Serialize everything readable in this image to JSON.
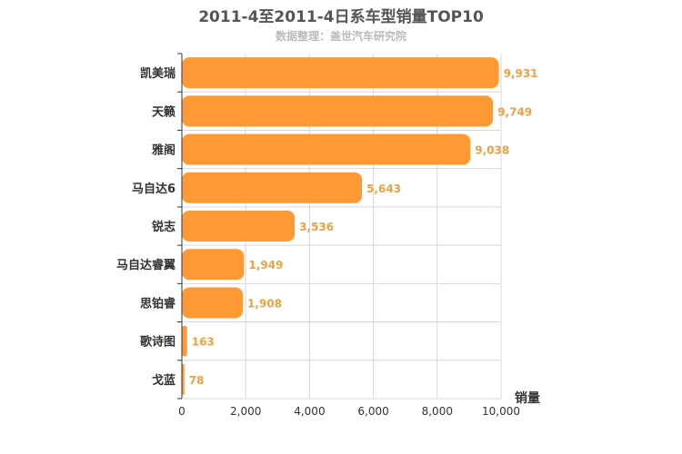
{
  "chart_data": {
    "type": "bar",
    "orientation": "horizontal",
    "title": "2011-4至2011-4日系车型销量TOP10",
    "subtitle": "数据整理：盖世汽车研究院",
    "categories": [
      "凯美瑞",
      "天籁",
      "雅阁",
      "马自达6",
      "锐志",
      "马自达睿翼",
      "思铂睿",
      "歌诗图",
      "戈蓝"
    ],
    "values": [
      9931,
      9749,
      9038,
      5643,
      3536,
      1949,
      1908,
      163,
      78
    ],
    "value_labels": [
      "9,931",
      "9,749",
      "9,038",
      "5,643",
      "3,536",
      "1,949",
      "1,908",
      "163",
      "78"
    ],
    "xlabel": "销量",
    "ylabel": "",
    "xlim": [
      0,
      10000
    ],
    "ticks": [
      0,
      2000,
      4000,
      6000,
      8000,
      10000
    ],
    "tick_labels": [
      "0",
      "2,000",
      "4,000",
      "6,000",
      "8,000",
      "10,000"
    ],
    "grid": true,
    "bar_color": "#ff9933",
    "label_color": "#f0a040"
  }
}
